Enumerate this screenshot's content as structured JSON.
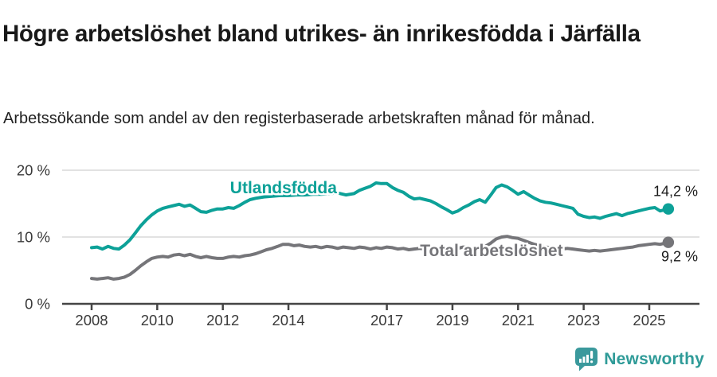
{
  "header": {
    "title": "Högre arbetslöshet bland utrikes- än inrikesfödda i Järfälla",
    "subtitle": "Arbetssökande som andel av den registerbaserade arbetskraften månad för månad."
  },
  "footer": {
    "brand": "Newsworthy",
    "logo_icon": "speech-bubble-bar-chart-exclamation"
  },
  "colors": {
    "accent_teal": "#0da198",
    "series_gray": "#757579",
    "grid": "#e2e2e2",
    "axis": "#454545",
    "tick_text": "#3a3a3a",
    "label_text": "#1a1a1a",
    "brand_teal": "#2f9b98"
  },
  "chart_data": {
    "type": "line",
    "title": "Högre arbetslöshet bland utrikes- än inrikesfödda i Järfälla",
    "subtitle": "Arbetssökande som andel av den registerbaserade arbetskraften månad för månad.",
    "unit": "%",
    "xlabel": "",
    "ylabel": "",
    "xlim": [
      2007.1,
      2026.5
    ],
    "ylim": [
      0,
      22
    ],
    "grid": "horizontal",
    "legend_position": "inline-labels",
    "yticks": [
      {
        "v": 0,
        "label": "0 %"
      },
      {
        "v": 10,
        "label": "10 %"
      },
      {
        "v": 20,
        "label": "20 %"
      }
    ],
    "xticks": [
      {
        "v": 2008,
        "label": "2008"
      },
      {
        "v": 2010,
        "label": "2010"
      },
      {
        "v": 2012,
        "label": "2012"
      },
      {
        "v": 2014,
        "label": "2014"
      },
      {
        "v": 2017,
        "label": "2017"
      },
      {
        "v": 2019,
        "label": "2019"
      },
      {
        "v": 2021,
        "label": "2021"
      },
      {
        "v": 2023,
        "label": "2023"
      },
      {
        "v": 2025,
        "label": "2025"
      }
    ],
    "series": [
      {
        "name": "Utlandsfödda",
        "color": "#0da198",
        "end_value": 14.2,
        "end_label": "14,2 %",
        "end_label_pos": "above",
        "label_anchor": {
          "x": 2013.85,
          "v": 17.38
        },
        "points": [
          [
            2008.0,
            8.4
          ],
          [
            2008.17,
            8.5
          ],
          [
            2008.33,
            8.2
          ],
          [
            2008.5,
            8.6
          ],
          [
            2008.67,
            8.3
          ],
          [
            2008.83,
            8.2
          ],
          [
            2009.0,
            8.8
          ],
          [
            2009.17,
            9.6
          ],
          [
            2009.33,
            10.6
          ],
          [
            2009.5,
            11.7
          ],
          [
            2009.67,
            12.6
          ],
          [
            2009.83,
            13.3
          ],
          [
            2010.0,
            13.9
          ],
          [
            2010.17,
            14.3
          ],
          [
            2010.33,
            14.5
          ],
          [
            2010.5,
            14.7
          ],
          [
            2010.67,
            14.9
          ],
          [
            2010.83,
            14.6
          ],
          [
            2011.0,
            14.8
          ],
          [
            2011.17,
            14.3
          ],
          [
            2011.33,
            13.8
          ],
          [
            2011.5,
            13.7
          ],
          [
            2011.67,
            14.0
          ],
          [
            2011.83,
            14.2
          ],
          [
            2012.0,
            14.2
          ],
          [
            2012.17,
            14.4
          ],
          [
            2012.33,
            14.3
          ],
          [
            2012.5,
            14.7
          ],
          [
            2012.67,
            15.2
          ],
          [
            2012.83,
            15.6
          ],
          [
            2013.0,
            15.8
          ],
          [
            2013.25,
            16.0
          ],
          [
            2013.5,
            16.1
          ],
          [
            2013.75,
            16.2
          ],
          [
            2014.0,
            16.2
          ],
          [
            2014.25,
            16.3
          ],
          [
            2014.5,
            16.3
          ],
          [
            2014.75,
            16.4
          ],
          [
            2015.0,
            16.4
          ],
          [
            2015.25,
            16.5
          ],
          [
            2015.5,
            16.6
          ],
          [
            2015.75,
            16.3
          ],
          [
            2016.0,
            16.5
          ],
          [
            2016.17,
            17.0
          ],
          [
            2016.33,
            17.3
          ],
          [
            2016.5,
            17.6
          ],
          [
            2016.67,
            18.1
          ],
          [
            2016.83,
            18.0
          ],
          [
            2017.0,
            18.0
          ],
          [
            2017.17,
            17.4
          ],
          [
            2017.33,
            17.0
          ],
          [
            2017.5,
            16.7
          ],
          [
            2017.67,
            16.1
          ],
          [
            2017.83,
            15.7
          ],
          [
            2018.0,
            15.8
          ],
          [
            2018.17,
            15.6
          ],
          [
            2018.33,
            15.4
          ],
          [
            2018.5,
            15.0
          ],
          [
            2018.67,
            14.5
          ],
          [
            2018.83,
            14.1
          ],
          [
            2019.0,
            13.6
          ],
          [
            2019.17,
            13.9
          ],
          [
            2019.33,
            14.4
          ],
          [
            2019.5,
            14.8
          ],
          [
            2019.67,
            15.3
          ],
          [
            2019.83,
            15.6
          ],
          [
            2020.0,
            15.2
          ],
          [
            2020.17,
            16.3
          ],
          [
            2020.33,
            17.4
          ],
          [
            2020.5,
            17.8
          ],
          [
            2020.67,
            17.5
          ],
          [
            2020.83,
            17.0
          ],
          [
            2021.0,
            16.4
          ],
          [
            2021.17,
            16.8
          ],
          [
            2021.33,
            16.3
          ],
          [
            2021.5,
            15.8
          ],
          [
            2021.67,
            15.4
          ],
          [
            2021.83,
            15.2
          ],
          [
            2022.0,
            15.1
          ],
          [
            2022.17,
            14.9
          ],
          [
            2022.33,
            14.7
          ],
          [
            2022.5,
            14.5
          ],
          [
            2022.67,
            14.3
          ],
          [
            2022.83,
            13.4
          ],
          [
            2023.0,
            13.1
          ],
          [
            2023.17,
            12.9
          ],
          [
            2023.33,
            13.0
          ],
          [
            2023.5,
            12.8
          ],
          [
            2023.67,
            13.1
          ],
          [
            2023.83,
            13.3
          ],
          [
            2024.0,
            13.5
          ],
          [
            2024.17,
            13.2
          ],
          [
            2024.33,
            13.5
          ],
          [
            2024.5,
            13.7
          ],
          [
            2024.67,
            13.9
          ],
          [
            2024.83,
            14.1
          ],
          [
            2025.0,
            14.3
          ],
          [
            2025.17,
            14.4
          ],
          [
            2025.33,
            13.9
          ],
          [
            2025.58,
            14.2
          ]
        ]
      },
      {
        "name": "Total arbetslöshet",
        "color": "#757579",
        "end_value": 9.2,
        "end_label": "9,2 %",
        "end_label_pos": "below",
        "label_anchor": {
          "x": 2020.19,
          "v": 7.98
        },
        "points": [
          [
            2008.0,
            3.8
          ],
          [
            2008.17,
            3.7
          ],
          [
            2008.33,
            3.8
          ],
          [
            2008.5,
            3.9
          ],
          [
            2008.67,
            3.7
          ],
          [
            2008.83,
            3.8
          ],
          [
            2009.0,
            4.0
          ],
          [
            2009.17,
            4.4
          ],
          [
            2009.33,
            5.0
          ],
          [
            2009.5,
            5.7
          ],
          [
            2009.67,
            6.3
          ],
          [
            2009.83,
            6.8
          ],
          [
            2010.0,
            7.0
          ],
          [
            2010.17,
            7.1
          ],
          [
            2010.33,
            7.0
          ],
          [
            2010.5,
            7.3
          ],
          [
            2010.67,
            7.4
          ],
          [
            2010.83,
            7.2
          ],
          [
            2011.0,
            7.4
          ],
          [
            2011.17,
            7.1
          ],
          [
            2011.33,
            6.9
          ],
          [
            2011.5,
            7.1
          ],
          [
            2011.67,
            6.9
          ],
          [
            2011.83,
            6.8
          ],
          [
            2012.0,
            6.8
          ],
          [
            2012.17,
            7.0
          ],
          [
            2012.33,
            7.1
          ],
          [
            2012.5,
            7.0
          ],
          [
            2012.67,
            7.2
          ],
          [
            2012.83,
            7.3
          ],
          [
            2013.0,
            7.5
          ],
          [
            2013.17,
            7.8
          ],
          [
            2013.33,
            8.1
          ],
          [
            2013.5,
            8.3
          ],
          [
            2013.67,
            8.6
          ],
          [
            2013.83,
            8.9
          ],
          [
            2014.0,
            8.9
          ],
          [
            2014.17,
            8.7
          ],
          [
            2014.33,
            8.8
          ],
          [
            2014.5,
            8.6
          ],
          [
            2014.67,
            8.5
          ],
          [
            2014.83,
            8.6
          ],
          [
            2015.0,
            8.4
          ],
          [
            2015.17,
            8.6
          ],
          [
            2015.33,
            8.5
          ],
          [
            2015.5,
            8.3
          ],
          [
            2015.67,
            8.5
          ],
          [
            2015.83,
            8.4
          ],
          [
            2016.0,
            8.3
          ],
          [
            2016.17,
            8.5
          ],
          [
            2016.33,
            8.4
          ],
          [
            2016.5,
            8.2
          ],
          [
            2016.67,
            8.4
          ],
          [
            2016.83,
            8.3
          ],
          [
            2017.0,
            8.5
          ],
          [
            2017.17,
            8.4
          ],
          [
            2017.33,
            8.2
          ],
          [
            2017.5,
            8.3
          ],
          [
            2017.67,
            8.1
          ],
          [
            2017.83,
            8.2
          ],
          [
            2018.0,
            8.3
          ],
          [
            2018.17,
            8.2
          ],
          [
            2018.33,
            8.4
          ],
          [
            2018.5,
            8.3
          ],
          [
            2018.67,
            8.2
          ],
          [
            2018.83,
            8.3
          ],
          [
            2019.0,
            8.4
          ],
          [
            2019.17,
            8.3
          ],
          [
            2019.33,
            8.5
          ],
          [
            2019.5,
            8.4
          ],
          [
            2019.67,
            8.3
          ],
          [
            2019.83,
            8.5
          ],
          [
            2020.0,
            8.6
          ],
          [
            2020.17,
            9.1
          ],
          [
            2020.33,
            9.7
          ],
          [
            2020.5,
            10.0
          ],
          [
            2020.67,
            10.1
          ],
          [
            2020.83,
            9.9
          ],
          [
            2021.0,
            9.8
          ],
          [
            2021.17,
            9.5
          ],
          [
            2021.33,
            9.2
          ],
          [
            2021.5,
            8.9
          ],
          [
            2021.67,
            8.7
          ],
          [
            2021.83,
            8.5
          ],
          [
            2022.0,
            8.4
          ],
          [
            2022.17,
            8.3
          ],
          [
            2022.33,
            8.2
          ],
          [
            2022.5,
            8.3
          ],
          [
            2022.67,
            8.2
          ],
          [
            2022.83,
            8.1
          ],
          [
            2023.0,
            8.0
          ],
          [
            2023.17,
            7.9
          ],
          [
            2023.33,
            8.0
          ],
          [
            2023.5,
            7.9
          ],
          [
            2023.67,
            8.0
          ],
          [
            2023.83,
            8.1
          ],
          [
            2024.0,
            8.2
          ],
          [
            2024.17,
            8.3
          ],
          [
            2024.33,
            8.4
          ],
          [
            2024.5,
            8.5
          ],
          [
            2024.67,
            8.7
          ],
          [
            2024.83,
            8.8
          ],
          [
            2025.0,
            8.9
          ],
          [
            2025.17,
            9.0
          ],
          [
            2025.33,
            8.9
          ],
          [
            2025.58,
            9.2
          ]
        ]
      }
    ]
  }
}
